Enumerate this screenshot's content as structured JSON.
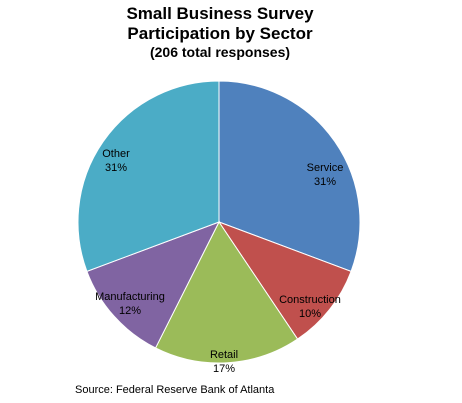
{
  "chart_data": {
    "type": "pie",
    "title": "Small Business Survey",
    "subtitle": "Participation by Sector",
    "subtitle2": "(206 total responses)",
    "slices": [
      {
        "label": "Service",
        "percent_label": "31%",
        "value": 31,
        "color": "#4f81bd"
      },
      {
        "label": "Construction",
        "percent_label": "10%",
        "value": 10,
        "color": "#c0504d"
      },
      {
        "label": "Retail",
        "percent_label": "17%",
        "value": 17,
        "color": "#9bbb59"
      },
      {
        "label": "Manufacturing",
        "percent_label": "12%",
        "value": 12,
        "color": "#8064a2"
      },
      {
        "label": "Other",
        "percent_label": "31%",
        "value": 31,
        "color": "#4bacc6"
      }
    ],
    "source": "Source: Federal Reserve Bank of Atlanta"
  }
}
